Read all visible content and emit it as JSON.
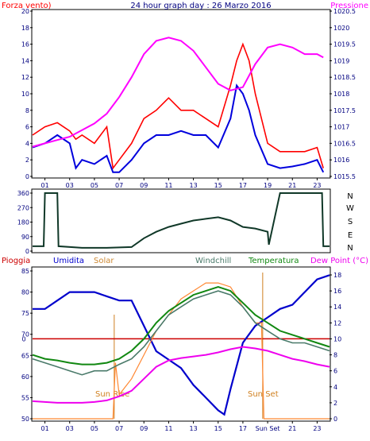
{
  "colors": {
    "wind": "#ff0000",
    "wind_avg": "#0000dd",
    "pressure": "#ff00ff",
    "direction": "#103828",
    "rain": "#cc0000",
    "humidity": "#0000cc",
    "solar": "#ff8833",
    "windchill": "#4a7a6a",
    "temperature": "#118811",
    "dewpoint": "#ee00ee",
    "tick_text": "#000080",
    "sun_marker": "#d08020"
  },
  "header": {
    "left_label": "Forza vento)",
    "title": "24 hour graph day : 26 Marzo 2016",
    "right_label": "Pressione"
  },
  "x_ticks": [
    "01",
    "03",
    "05",
    "07",
    "09",
    "11",
    "13",
    "15",
    "17",
    "19",
    "21",
    "23"
  ],
  "bottom_x_ticks": [
    "01",
    "03",
    "05",
    "07",
    "09",
    "11",
    "13",
    "15",
    "17",
    "Sun Set",
    "21",
    "23"
  ],
  "compass": [
    "N",
    "W",
    "S",
    "E",
    "N"
  ],
  "bottom_labels": {
    "rain": "Pioggia",
    "humidity": "Umidita",
    "solar": "Solar",
    "windchill": "Windchill",
    "temperature": "Temperatura",
    "dewpoint": "Dew Point (°C)"
  },
  "annotations": {
    "sun_rise": "Sun Rise",
    "sun_set": "Sun Set"
  },
  "chart_data": [
    {
      "type": "line",
      "title": "24 hour graph day : 26 Marzo 2016",
      "ylabel": "Forza vento)",
      "ylabel_right": "Pressione",
      "ylim": [
        0,
        20
      ],
      "yticks": [
        0,
        2,
        4,
        6,
        8,
        10,
        12,
        14,
        16,
        18,
        20
      ],
      "ylim_right": [
        1015.5,
        1020.5
      ],
      "yticks_right": [
        "1015.5",
        "1016",
        "1016.5",
        "1017",
        "1017.5",
        "1018",
        "1018.5",
        "1019",
        "1019.5",
        "1020",
        "1020.5"
      ],
      "series": [
        {
          "name": "",
          "axis": "left",
          "x": [
            0,
            1,
            2,
            3,
            3.5,
            4,
            5,
            6,
            6.5,
            7,
            8,
            9,
            10,
            11,
            12,
            13,
            14,
            15,
            16,
            16.5,
            17,
            17.5,
            18,
            19,
            20,
            21,
            22,
            23,
            23.5
          ],
          "values": [
            5,
            6,
            6.5,
            5.5,
            4.5,
            5,
            4,
            6,
            1,
            2,
            4,
            7,
            8,
            9.5,
            8,
            8,
            7,
            6,
            11,
            14,
            16,
            14,
            10,
            4,
            3,
            3,
            3,
            3.5,
            1
          ]
        },
        {
          "name": "",
          "axis": "left",
          "x": [
            0,
            1,
            2,
            3,
            3.5,
            4,
            5,
            6,
            6.5,
            7,
            8,
            9,
            10,
            11,
            12,
            13,
            14,
            15,
            16,
            16.5,
            17,
            17.5,
            18,
            19,
            20,
            21,
            22,
            23,
            23.5
          ],
          "values": [
            3.5,
            4,
            5,
            4,
            1,
            2,
            1.5,
            2.5,
            0.5,
            0.5,
            2,
            4,
            5,
            5,
            5.5,
            5,
            5,
            3.5,
            7,
            11,
            10,
            8,
            5,
            1.5,
            1,
            1.2,
            1.5,
            2,
            0.5
          ]
        },
        {
          "name": "",
          "axis": "right",
          "x": [
            0,
            1,
            2,
            3,
            4,
            5,
            6,
            7,
            8,
            9,
            10,
            11,
            12,
            13,
            14,
            15,
            16,
            17,
            18,
            19,
            20,
            21,
            22,
            23,
            23.5
          ],
          "values": [
            1016.4,
            1016.5,
            1016.6,
            1016.7,
            1016.9,
            1017.1,
            1017.4,
            1017.9,
            1018.5,
            1019.2,
            1019.6,
            1019.7,
            1019.6,
            1019.3,
            1018.8,
            1018.3,
            1018.1,
            1018.2,
            1018.9,
            1019.4,
            1019.5,
            1019.4,
            1019.2,
            1019.2,
            1019.1
          ]
        }
      ]
    },
    {
      "type": "line",
      "ylim": [
        0,
        360
      ],
      "yticks": [
        0,
        90,
        180,
        270,
        360
      ],
      "series": [
        {
          "name": "",
          "x": [
            0,
            0.9,
            1,
            2,
            2.1,
            4,
            6,
            8,
            9,
            10,
            11,
            12,
            13,
            14,
            15,
            16,
            17,
            18,
            19,
            19.1,
            20,
            23,
            23.4,
            23.5,
            24
          ],
          "values": [
            30,
            30,
            360,
            360,
            30,
            20,
            20,
            25,
            80,
            120,
            150,
            170,
            190,
            200,
            210,
            190,
            150,
            140,
            120,
            40,
            360,
            360,
            360,
            30,
            30
          ]
        }
      ]
    },
    {
      "type": "line",
      "ylim": [
        50,
        85
      ],
      "yticks": [
        50,
        55,
        60,
        65,
        70,
        75,
        80,
        85
      ],
      "ylim_right": [
        0,
        18
      ],
      "yticks_right": [
        0,
        2,
        4,
        6,
        8,
        10,
        12,
        14,
        16,
        18
      ],
      "series": [
        {
          "name": "Pioggia",
          "axis": "right",
          "x": [
            0,
            24
          ],
          "values": [
            10,
            10
          ]
        },
        {
          "name": "Umidita",
          "axis": "left",
          "x": [
            0,
            1,
            2,
            3,
            4,
            5,
            6,
            7,
            8,
            9,
            10,
            11,
            12,
            13,
            14,
            15,
            15.5,
            16,
            17,
            18,
            19,
            20,
            21,
            22,
            23,
            24
          ],
          "values": [
            76,
            76,
            78,
            80,
            80,
            80,
            79,
            78,
            78,
            72,
            66,
            64,
            62,
            58,
            55,
            52,
            51,
            57,
            68,
            72,
            74,
            76,
            77,
            80,
            83,
            84
          ]
        },
        {
          "name": "Solar",
          "axis": "right",
          "x": [
            0,
            6.5,
            6.7,
            7,
            8,
            9,
            10,
            11,
            12,
            13,
            14,
            15,
            16,
            17,
            18,
            18.5,
            18.7,
            19,
            24
          ],
          "values": [
            0,
            0,
            7,
            3,
            5,
            8,
            11,
            13,
            15,
            16,
            17,
            17,
            16.5,
            14,
            12,
            12,
            0,
            0,
            0
          ]
        },
        {
          "name": "Windchill",
          "axis": "right",
          "x": [
            0,
            1,
            2,
            3,
            4,
            5,
            6,
            7,
            8,
            9,
            10,
            11,
            12,
            13,
            14,
            15,
            16,
            17,
            18,
            19,
            20,
            21,
            22,
            23,
            24
          ],
          "values": [
            7.5,
            7,
            6.5,
            6,
            5.5,
            6,
            6,
            6.8,
            7.5,
            9,
            11,
            13,
            14,
            15,
            15.5,
            16,
            15.5,
            14,
            12,
            11,
            10,
            9.5,
            9.5,
            9,
            8.5
          ]
        },
        {
          "name": "Temperatura",
          "axis": "right",
          "x": [
            0,
            1,
            2,
            3,
            4,
            5,
            6,
            7,
            8,
            9,
            10,
            11,
            12,
            13,
            14,
            15,
            16,
            17,
            18,
            19,
            20,
            21,
            22,
            23,
            24
          ],
          "values": [
            8,
            7.5,
            7.3,
            7,
            6.8,
            6.8,
            7,
            7.5,
            8.5,
            10,
            12,
            13.5,
            14.5,
            15.5,
            16,
            16.5,
            16,
            14.5,
            13,
            12,
            11,
            10.5,
            10,
            9.5,
            9
          ]
        },
        {
          "name": "Dew Point (°C)",
          "axis": "right",
          "x": [
            0,
            1,
            2,
            3,
            4,
            5,
            6,
            7,
            8,
            9,
            10,
            11,
            12,
            13,
            14,
            15,
            16,
            17,
            18,
            19,
            20,
            21,
            22,
            23,
            24
          ],
          "values": [
            2.2,
            2.1,
            2,
            2,
            2,
            2.1,
            2.3,
            2.8,
            3.5,
            5,
            6.5,
            7.3,
            7.6,
            7.8,
            8,
            8.3,
            8.7,
            9,
            8.8,
            8.5,
            8,
            7.5,
            7.2,
            6.8,
            6.5
          ]
        }
      ]
    }
  ]
}
